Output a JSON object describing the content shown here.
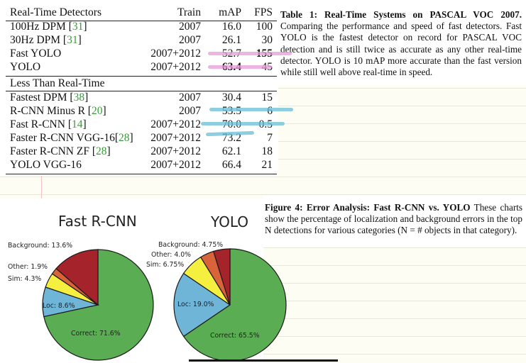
{
  "table": {
    "header": {
      "name": "Real-Time Detectors",
      "train": "Train",
      "map": "mAP",
      "fps": "FPS"
    },
    "realtime": [
      {
        "name": "100Hz DPM [",
        "ref": "31",
        "close": "]",
        "train": "2007",
        "map": "16.0",
        "fps": "100"
      },
      {
        "name": "30Hz DPM [",
        "ref": "31",
        "close": "]",
        "train": "2007",
        "map": "26.1",
        "fps": "30"
      },
      {
        "name": "Fast YOLO",
        "ref": "",
        "close": "",
        "train": "2007+2012",
        "map": "52.7",
        "fps": "155"
      },
      {
        "name": "YOLO",
        "ref": "",
        "close": "",
        "train": "2007+2012",
        "map": "63.4",
        "fps": "45"
      }
    ],
    "section2_header": "Less Than Real-Time",
    "slower": [
      {
        "name": "Fastest DPM [",
        "ref": "38",
        "close": "]",
        "train": "2007",
        "map": "30.4",
        "fps": "15"
      },
      {
        "name": "R-CNN Minus R [",
        "ref": "20",
        "close": "]",
        "train": "2007",
        "map": "53.5",
        "fps": "6"
      },
      {
        "name": "Fast R-CNN [",
        "ref": "14",
        "close": "]",
        "train": "2007+2012",
        "map": "70.0",
        "fps": "0.5"
      },
      {
        "name": "Faster R-CNN VGG-16[",
        "ref": "28",
        "close": "]",
        "train": "2007+2012",
        "map": "73.2",
        "fps": "7"
      },
      {
        "name": "Faster R-CNN ZF [",
        "ref": "28",
        "close": "]",
        "train": "2007+2012",
        "map": "62.1",
        "fps": "18"
      },
      {
        "name": "YOLO VGG-16",
        "ref": "",
        "close": "",
        "train": "2007+2012",
        "map": "66.4",
        "fps": "21"
      }
    ]
  },
  "table_caption": {
    "label": "Table 1: Real-Time Systems on PASCAL VOC 2007.",
    "body": "Comparing the performance and speed of fast detectors. Fast YOLO is the fastest detector on record for PASCAL VOC detection and is still twice as accurate as any other real-time detector. YOLO is 10 mAP more accurate than the fast version while still well above real-time in speed."
  },
  "figure_caption": {
    "label": "Figure 4: Error Analysis: Fast R-CNN vs. YOLO",
    "body": "These charts show the percentage of localization and background errors in the top N detections for various categories (N = # objects in that category)."
  },
  "chart_data": [
    {
      "type": "pie",
      "title": "Fast R-CNN",
      "categories": [
        "Correct",
        "Loc",
        "Sim",
        "Other",
        "Background"
      ],
      "values": [
        71.6,
        8.6,
        4.3,
        1.9,
        13.6
      ],
      "labels": [
        "Correct: 71.6%",
        "Loc: 8.6%",
        "Sim: 4.3%",
        "Other: 1.9%",
        "Background: 13.6%"
      ],
      "colors": [
        "#5aad52",
        "#6fb5d8",
        "#f5f03f",
        "#d9643a",
        "#a5232b"
      ]
    },
    {
      "type": "pie",
      "title": "YOLO",
      "categories": [
        "Correct",
        "Loc",
        "Sim",
        "Other",
        "Background"
      ],
      "values": [
        65.5,
        19.0,
        6.75,
        4.0,
        4.75
      ],
      "labels": [
        "Correct: 65.5%",
        "Loc: 19.0%",
        "Sim: 6.75%",
        "Other: 4.0%",
        "Background: 4.75%"
      ],
      "colors": [
        "#5aad52",
        "#6fb5d8",
        "#f5f03f",
        "#d9643a",
        "#a5232b"
      ]
    }
  ],
  "annotations": {
    "highlight_pink": "#e79ad7",
    "highlight_blue": "#69bdd6"
  }
}
